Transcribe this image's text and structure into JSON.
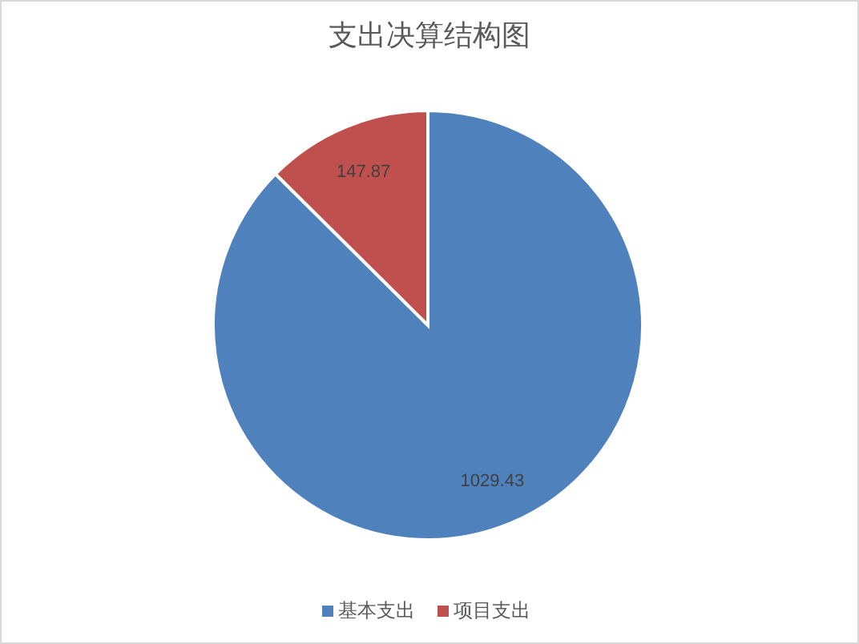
{
  "chart_data": {
    "type": "pie",
    "title": "支出决算结构图",
    "categories": [
      "基本支出",
      "项目支出"
    ],
    "values": [
      1029.43,
      147.87
    ],
    "colors": [
      "#4f81bd",
      "#c0504d"
    ],
    "data_labels": true,
    "legend": "bottom"
  }
}
